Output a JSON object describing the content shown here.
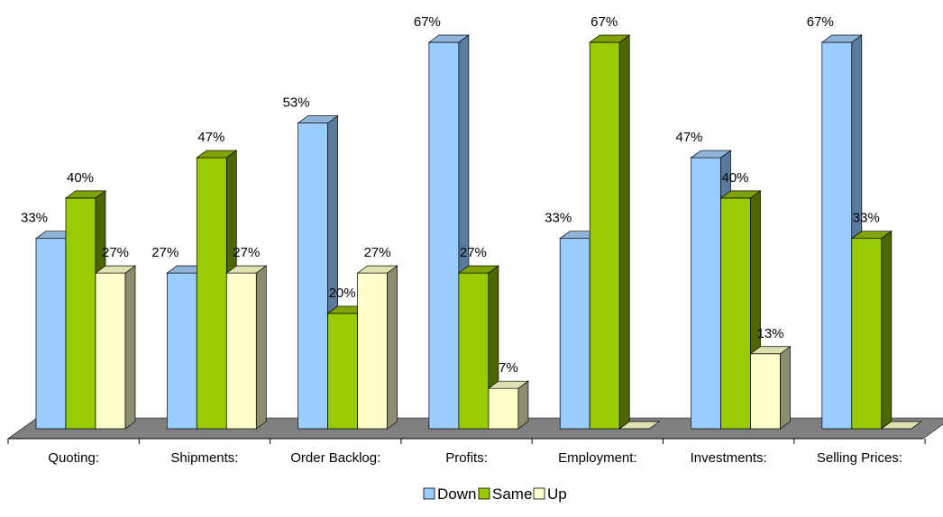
{
  "chart_data": {
    "type": "bar",
    "title": "",
    "xlabel": "",
    "ylabel": "",
    "ylim": [
      0,
      67
    ],
    "categories": [
      "Quoting:",
      "Shipments:",
      "Order Backlog:",
      "Profits:",
      "Employment:",
      "Investments:",
      "Selling Prices:"
    ],
    "series": [
      {
        "name": "Down",
        "values": [
          33,
          27,
          53,
          67,
          33,
          47,
          67
        ],
        "labels": [
          "33%",
          "27%",
          "53%",
          "67%",
          "33%",
          "47%",
          "67%"
        ],
        "color": "#99CCFF",
        "top": "#8FB3D9",
        "side": "#5A7A9E"
      },
      {
        "name": "Same",
        "values": [
          40,
          47,
          20,
          27,
          67,
          40,
          33
        ],
        "labels": [
          "40%",
          "47%",
          "20%",
          "27%",
          "67%",
          "40%",
          "33%"
        ],
        "color": "#99CC00",
        "top": "#7FA300",
        "side": "#4D6600"
      },
      {
        "name": "Up",
        "values": [
          27,
          27,
          27,
          7,
          0,
          13,
          0
        ],
        "labels": [
          "27%",
          "27%",
          "27%",
          "7%",
          "",
          "13%",
          ""
        ],
        "color": "#FFFFCC",
        "top": "#E0E0B0",
        "side": "#8C8C70"
      }
    ],
    "legend": {
      "position": "bottom",
      "items": [
        "Down",
        "Same",
        "Up"
      ]
    },
    "grid": false
  }
}
